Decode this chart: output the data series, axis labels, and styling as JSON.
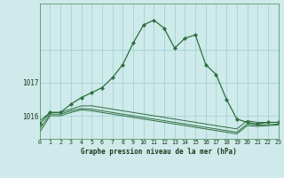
{
  "title": "Graphe pression niveau de la mer (hPa)",
  "bg_color": "#ceeaea",
  "grid_color": "#9ecece",
  "line_color": "#2d6e3e",
  "xlim": [
    0,
    23
  ],
  "ylim": [
    1015.3,
    1019.4
  ],
  "yticks": [
    1016,
    1017,
    1018
  ],
  "ytick_labels": [
    "1016",
    "1017",
    ""
  ],
  "xtick_labels": [
    "0",
    "1",
    "2",
    "3",
    "4",
    "5",
    "6",
    "7",
    "8",
    "9",
    "10",
    "11",
    "12",
    "13",
    "14",
    "15",
    "16",
    "17",
    "18",
    "19",
    "20",
    "21",
    "22",
    "23"
  ],
  "series1_x": [
    0,
    1,
    2,
    3,
    4,
    5,
    6,
    7,
    8,
    9,
    10,
    11,
    12,
    13,
    14,
    15,
    16,
    17,
    18,
    19,
    20,
    21,
    22,
    23
  ],
  "series1_y": [
    1015.75,
    1016.1,
    1016.1,
    1016.35,
    1016.55,
    1016.7,
    1016.85,
    1017.15,
    1017.55,
    1018.2,
    1018.75,
    1018.9,
    1018.65,
    1018.05,
    1018.35,
    1018.45,
    1017.55,
    1017.25,
    1016.5,
    1015.9,
    1015.8,
    1015.75,
    1015.8,
    1015.8
  ],
  "series2_x": [
    0,
    1,
    2,
    3,
    4,
    5,
    6,
    7,
    8,
    9,
    10,
    11,
    12,
    13,
    14,
    15,
    16,
    17,
    18,
    19,
    20,
    21,
    22,
    23
  ],
  "series2_y": [
    1015.85,
    1016.1,
    1016.1,
    1016.2,
    1016.3,
    1016.3,
    1016.25,
    1016.2,
    1016.15,
    1016.1,
    1016.05,
    1016.0,
    1015.95,
    1015.9,
    1015.85,
    1015.8,
    1015.75,
    1015.7,
    1015.65,
    1015.6,
    1015.85,
    1015.8,
    1015.8,
    1015.8
  ],
  "series3_x": [
    0,
    1,
    2,
    3,
    4,
    5,
    6,
    7,
    8,
    9,
    10,
    11,
    12,
    13,
    14,
    15,
    16,
    17,
    18,
    19,
    20,
    21,
    22,
    23
  ],
  "series3_y": [
    1015.6,
    1016.05,
    1016.05,
    1016.15,
    1016.22,
    1016.2,
    1016.15,
    1016.1,
    1016.05,
    1016.0,
    1015.95,
    1015.9,
    1015.85,
    1015.8,
    1015.75,
    1015.7,
    1015.65,
    1015.6,
    1015.55,
    1015.5,
    1015.75,
    1015.72,
    1015.73,
    1015.75
  ],
  "series4_x": [
    0,
    1,
    2,
    3,
    4,
    5,
    6,
    7,
    8,
    9,
    10,
    11,
    12,
    13,
    14,
    15,
    16,
    17,
    18,
    19,
    20,
    21,
    22,
    23
  ],
  "series4_y": [
    1015.5,
    1016.0,
    1016.0,
    1016.1,
    1016.18,
    1016.15,
    1016.1,
    1016.05,
    1016.0,
    1015.95,
    1015.9,
    1015.85,
    1015.8,
    1015.75,
    1015.7,
    1015.65,
    1015.6,
    1015.55,
    1015.5,
    1015.45,
    1015.7,
    1015.68,
    1015.7,
    1015.72
  ]
}
